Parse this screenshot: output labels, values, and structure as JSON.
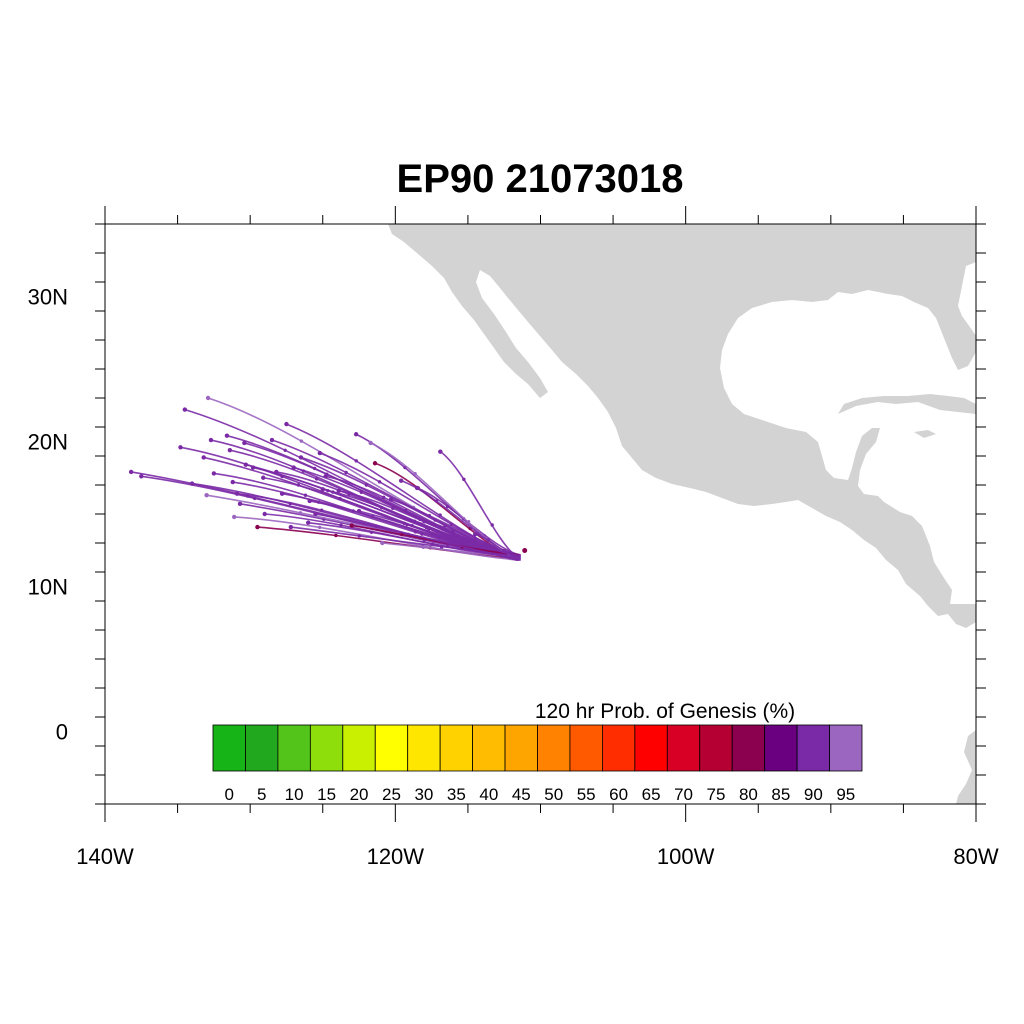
{
  "title": "EP90 21073018",
  "map": {
    "lon_range": [
      -140,
      -80
    ],
    "lat_range": [
      -5,
      35
    ],
    "lon_labels": [
      {
        "lon": -140,
        "text": "140W"
      },
      {
        "lon": -120,
        "text": "120W"
      },
      {
        "lon": -100,
        "text": "100W"
      },
      {
        "lon": -80,
        "text": "80W"
      }
    ],
    "lat_labels": [
      {
        "lat": 30,
        "text": "30N"
      },
      {
        "lat": 20,
        "text": "20N"
      },
      {
        "lat": 10,
        "text": "10N"
      },
      {
        "lat": 0,
        "text": "0"
      }
    ],
    "land_color": "#d3d3d3"
  },
  "colorbar": {
    "title": "120 hr Prob. of Genesis (%)",
    "labels": [
      "0",
      "5",
      "10",
      "15",
      "20",
      "25",
      "30",
      "35",
      "40",
      "45",
      "50",
      "55",
      "60",
      "65",
      "70",
      "75",
      "80",
      "85",
      "90",
      "95"
    ],
    "colors": [
      "#16b416",
      "#22a81e",
      "#52c41a",
      "#8ede0c",
      "#c8f000",
      "#ffff00",
      "#ffe600",
      "#ffd200",
      "#ffbc00",
      "#ffa500",
      "#ff8200",
      "#ff5a00",
      "#ff2d00",
      "#ff0000",
      "#d90026",
      "#b40032",
      "#8c0050",
      "#6a0080",
      "#7a2aa6",
      "#9b66c0"
    ]
  },
  "tracks": {
    "start": [
      -111.5,
      12.0
    ],
    "color_main": "#7b2aa6",
    "color_light": "#9b66c0",
    "color_dark": "#8c0050",
    "endpoints": [
      [
        -138.2,
        17.9
      ],
      [
        -137.5,
        17.6
      ],
      [
        -134.8,
        19.6
      ],
      [
        -134.5,
        22.2
      ],
      [
        -132.9,
        23.0
      ],
      [
        -132.7,
        20.1
      ],
      [
        -133.2,
        18.9
      ],
      [
        -131.6,
        20.4
      ],
      [
        -132.5,
        17.8
      ],
      [
        -130.4,
        19.9
      ],
      [
        -131.2,
        17.2
      ],
      [
        -130.7,
        15.7
      ],
      [
        -129.5,
        14.1
      ],
      [
        -131.1,
        14.8
      ],
      [
        -127.2,
        14.1
      ],
      [
        -127.8,
        16.4
      ],
      [
        -129.1,
        17.5
      ],
      [
        -125.2,
        19.2
      ],
      [
        -125.0,
        16.7
      ],
      [
        -124.8,
        17.6
      ],
      [
        -127.0,
        18.2
      ],
      [
        -131.4,
        19.4
      ],
      [
        -133.0,
        16.3
      ],
      [
        -129.8,
        18.2
      ],
      [
        -129.0,
        15.0
      ],
      [
        -127.5,
        21.2
      ],
      [
        -122.7,
        20.5
      ],
      [
        -121.4,
        18.5
      ],
      [
        -120.3,
        16.0
      ],
      [
        -118.5,
        16.8
      ],
      [
        -116.9,
        19.3
      ],
      [
        -120.9,
        13.0
      ],
      [
        -119.6,
        17.3
      ],
      [
        -122.5,
        15.2
      ],
      [
        -125.9,
        15.9
      ],
      [
        -123.9,
        16.6
      ],
      [
        -128.5,
        20.1
      ],
      [
        -134.0,
        17.1
      ],
      [
        -130.9,
        16.4
      ],
      [
        -126.5,
        18.9
      ],
      [
        -121.7,
        19.9
      ],
      [
        -128.2,
        17.9
      ],
      [
        -123.0,
        14.2
      ],
      [
        -118.0,
        14.5
      ],
      [
        -130.3,
        18.4
      ],
      [
        -126.0,
        14.4
      ],
      [
        -114.5,
        13.6
      ],
      [
        -125.5,
        15.0
      ]
    ]
  }
}
